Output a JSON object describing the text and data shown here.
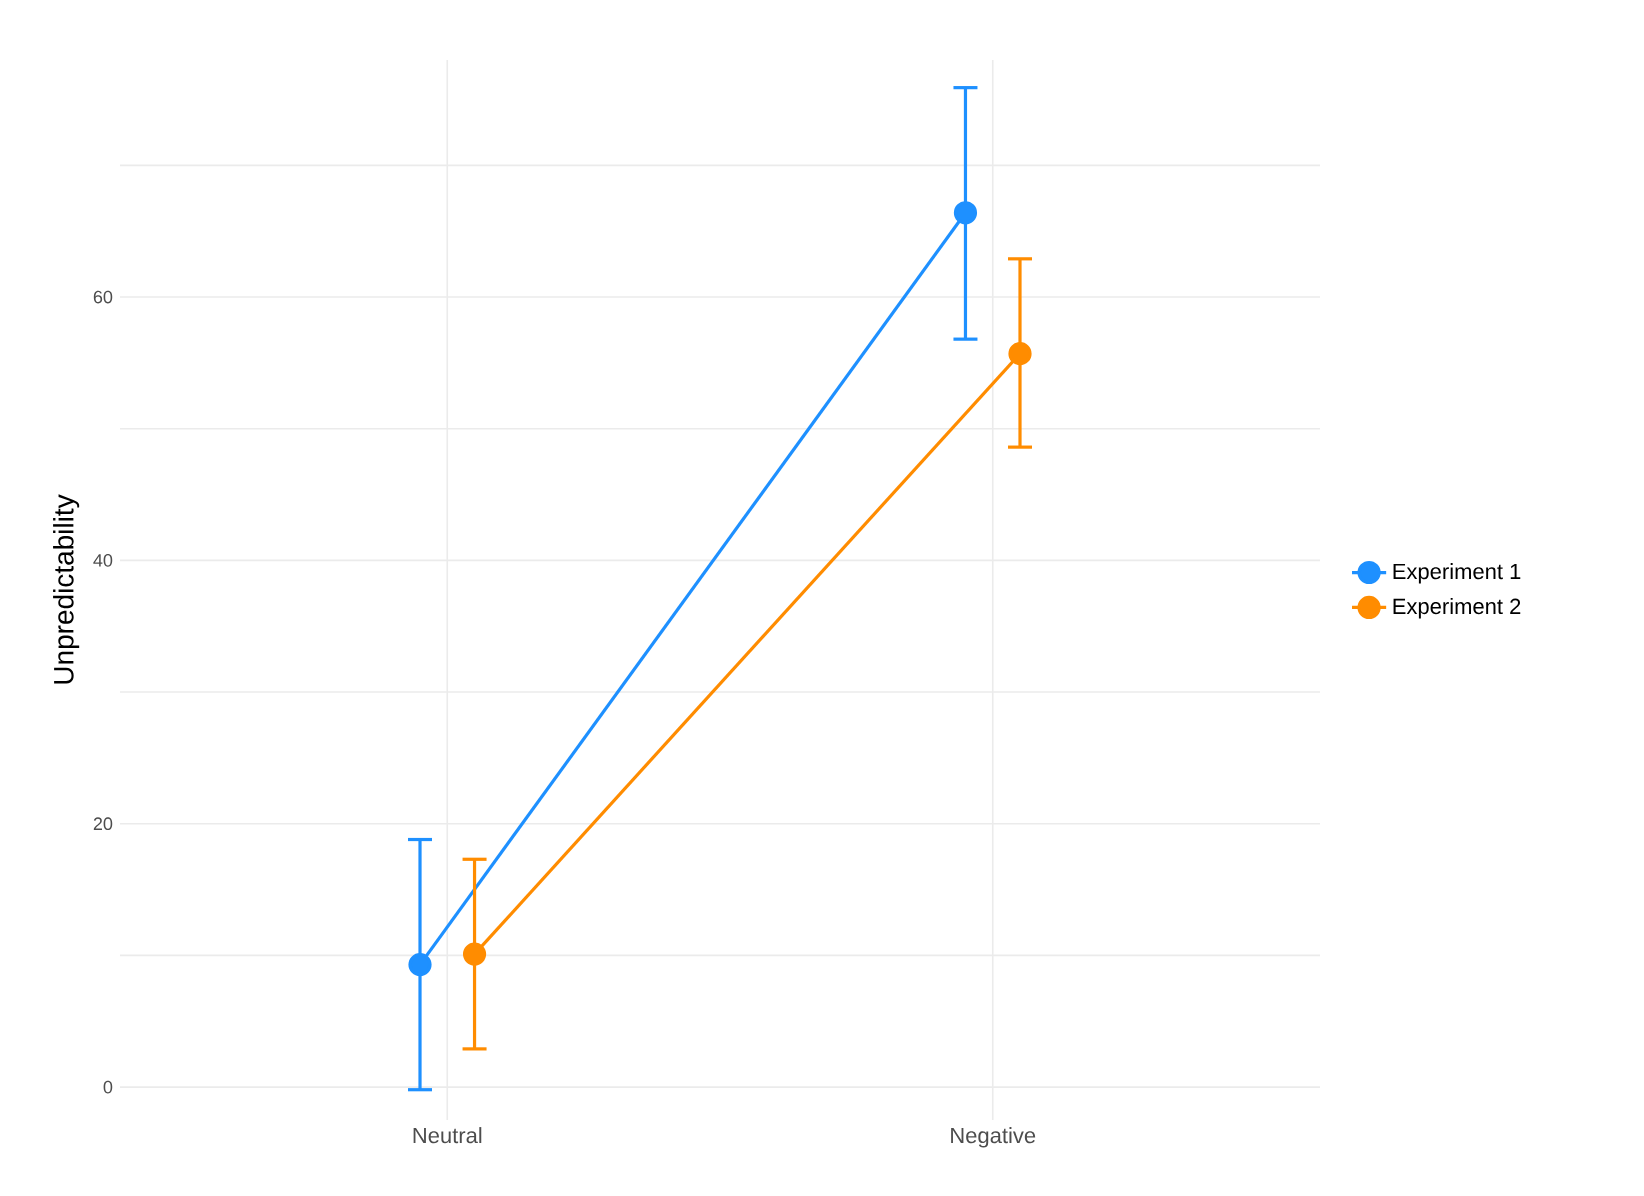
{
  "chart_data": {
    "type": "line",
    "ylabel": "Unpredictability",
    "categories": [
      "Neutral",
      "Negative"
    ],
    "series": [
      {
        "name": "Experiment 1",
        "color": "#1e90ff",
        "values": [
          9.3,
          66.4
        ],
        "errors": [
          [
            -0.2,
            18.8
          ],
          [
            56.8,
            75.9
          ]
        ]
      },
      {
        "name": "Experiment 2",
        "color": "#ff8c00",
        "values": [
          10.1,
          55.7
        ],
        "errors": [
          [
            2.9,
            17.3
          ],
          [
            48.6,
            62.9
          ]
        ]
      }
    ],
    "ylim": [
      -2.5,
      78
    ],
    "yticks": [
      0,
      {
        "value": 10,
        "label": null
      },
      20,
      {
        "value": 30,
        "label": null
      },
      40,
      {
        "value": 50,
        "label": null
      },
      60,
      {
        "value": 70,
        "label": null
      }
    ],
    "grid": true,
    "legend": "right",
    "marker": "circle",
    "line_style": "solid"
  }
}
